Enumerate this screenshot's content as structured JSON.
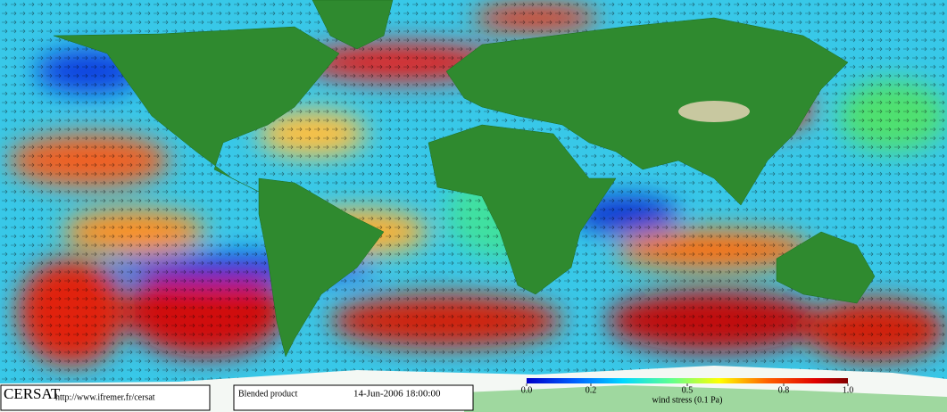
{
  "logo": {
    "name": "CERSAT",
    "url": "http://www.ifremer.fr/cersat"
  },
  "product": "Blended product",
  "timestamp": "14-Jun-2006 18:00:00",
  "colorbar": {
    "label": "wind stress (0.1 Pa)",
    "range": [
      0,
      1
    ],
    "ticks": [
      {
        "value": 0,
        "label": "0.0"
      },
      0.2,
      0.5,
      0.8,
      {
        "value": 1,
        "label": "1.0"
      }
    ]
  }
}
